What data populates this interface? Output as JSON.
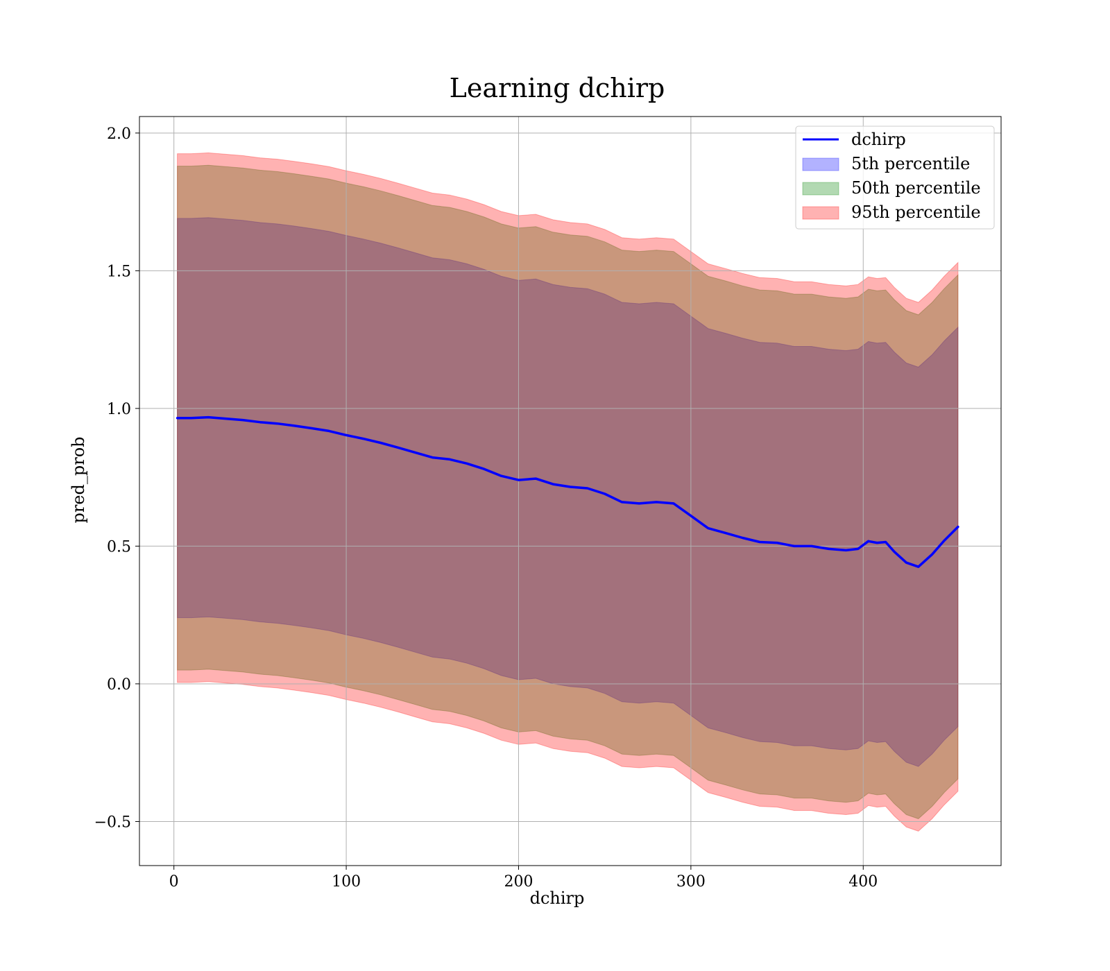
{
  "chart_data": {
    "type": "area",
    "title": "Learning dchirp",
    "xlabel": "dchirp",
    "ylabel": "pred_prob",
    "xlim": [
      -20,
      480
    ],
    "ylim": [
      -0.66,
      2.06
    ],
    "xticks": [
      0,
      100,
      200,
      300,
      400
    ],
    "yticks": [
      -0.5,
      0.0,
      0.5,
      1.0,
      1.5,
      2.0
    ],
    "xtick_labels": [
      "0",
      "100",
      "200",
      "300",
      "400"
    ],
    "ytick_labels": [
      "−0.5",
      "0.0",
      "0.5",
      "1.0",
      "1.5",
      "2.0"
    ],
    "grid": true,
    "legend_position": "top-right",
    "x": [
      2,
      10,
      20,
      30,
      40,
      50,
      60,
      70,
      80,
      90,
      100,
      110,
      120,
      130,
      140,
      150,
      160,
      170,
      180,
      190,
      200,
      210,
      220,
      230,
      240,
      250,
      260,
      270,
      280,
      290,
      300,
      310,
      320,
      330,
      340,
      350,
      360,
      370,
      380,
      390,
      397,
      403,
      408,
      413,
      418,
      425,
      432,
      440,
      447,
      455
    ],
    "series": [
      {
        "name": "dchirp",
        "kind": "line",
        "color": "#0000ff",
        "values": [
          0.965,
          0.965,
          0.968,
          0.963,
          0.958,
          0.95,
          0.945,
          0.937,
          0.928,
          0.918,
          0.903,
          0.89,
          0.875,
          0.858,
          0.84,
          0.822,
          0.815,
          0.8,
          0.78,
          0.755,
          0.74,
          0.745,
          0.725,
          0.715,
          0.71,
          0.69,
          0.66,
          0.655,
          0.66,
          0.655,
          0.61,
          0.565,
          0.548,
          0.53,
          0.515,
          0.512,
          0.5,
          0.5,
          0.49,
          0.485,
          0.49,
          0.518,
          0.512,
          0.515,
          0.48,
          0.44,
          0.425,
          0.47,
          0.52,
          0.57
        ]
      },
      {
        "name": "5th percentile",
        "kind": "band",
        "color": "#0000ff",
        "opacity": 0.3,
        "upper": [
          1.69,
          1.69,
          1.693,
          1.688,
          1.683,
          1.675,
          1.67,
          1.662,
          1.653,
          1.643,
          1.628,
          1.615,
          1.6,
          1.583,
          1.565,
          1.547,
          1.54,
          1.525,
          1.505,
          1.48,
          1.465,
          1.47,
          1.45,
          1.44,
          1.435,
          1.415,
          1.385,
          1.38,
          1.385,
          1.38,
          1.335,
          1.29,
          1.273,
          1.255,
          1.24,
          1.237,
          1.225,
          1.225,
          1.215,
          1.21,
          1.215,
          1.243,
          1.237,
          1.24,
          1.205,
          1.165,
          1.15,
          1.195,
          1.245,
          1.295
        ],
        "lower": [
          0.24,
          0.24,
          0.243,
          0.238,
          0.233,
          0.225,
          0.22,
          0.212,
          0.203,
          0.193,
          0.178,
          0.165,
          0.15,
          0.133,
          0.115,
          0.097,
          0.09,
          0.075,
          0.055,
          0.03,
          0.015,
          0.02,
          0.0,
          -0.01,
          -0.015,
          -0.035,
          -0.065,
          -0.07,
          -0.065,
          -0.07,
          -0.115,
          -0.16,
          -0.177,
          -0.195,
          -0.21,
          -0.213,
          -0.225,
          -0.225,
          -0.235,
          -0.24,
          -0.235,
          -0.207,
          -0.213,
          -0.21,
          -0.245,
          -0.285,
          -0.3,
          -0.255,
          -0.205,
          -0.155
        ]
      },
      {
        "name": "50th percentile",
        "kind": "band",
        "color": "#008000",
        "opacity": 0.3,
        "upper": [
          1.88,
          1.88,
          1.883,
          1.878,
          1.873,
          1.865,
          1.86,
          1.852,
          1.843,
          1.833,
          1.818,
          1.805,
          1.79,
          1.773,
          1.755,
          1.737,
          1.73,
          1.715,
          1.695,
          1.67,
          1.655,
          1.66,
          1.64,
          1.63,
          1.625,
          1.605,
          1.575,
          1.57,
          1.575,
          1.57,
          1.525,
          1.48,
          1.463,
          1.445,
          1.43,
          1.427,
          1.415,
          1.415,
          1.405,
          1.4,
          1.405,
          1.433,
          1.427,
          1.43,
          1.395,
          1.355,
          1.34,
          1.385,
          1.435,
          1.485
        ],
        "lower": [
          0.05,
          0.05,
          0.053,
          0.048,
          0.043,
          0.035,
          0.03,
          0.022,
          0.013,
          0.003,
          -0.012,
          -0.025,
          -0.04,
          -0.057,
          -0.075,
          -0.093,
          -0.1,
          -0.115,
          -0.135,
          -0.16,
          -0.175,
          -0.17,
          -0.19,
          -0.2,
          -0.205,
          -0.225,
          -0.255,
          -0.26,
          -0.255,
          -0.26,
          -0.305,
          -0.35,
          -0.367,
          -0.385,
          -0.4,
          -0.403,
          -0.415,
          -0.415,
          -0.425,
          -0.43,
          -0.425,
          -0.397,
          -0.403,
          -0.4,
          -0.435,
          -0.475,
          -0.49,
          -0.445,
          -0.395,
          -0.345
        ]
      },
      {
        "name": "95th percentile",
        "kind": "band",
        "color": "#ff0000",
        "opacity": 0.3,
        "upper": [
          1.925,
          1.925,
          1.928,
          1.923,
          1.918,
          1.91,
          1.905,
          1.897,
          1.888,
          1.878,
          1.863,
          1.85,
          1.835,
          1.818,
          1.8,
          1.782,
          1.775,
          1.76,
          1.74,
          1.715,
          1.7,
          1.705,
          1.685,
          1.675,
          1.67,
          1.65,
          1.62,
          1.615,
          1.62,
          1.615,
          1.57,
          1.525,
          1.508,
          1.49,
          1.475,
          1.472,
          1.46,
          1.46,
          1.45,
          1.445,
          1.45,
          1.478,
          1.472,
          1.475,
          1.44,
          1.4,
          1.385,
          1.43,
          1.48,
          1.53
        ],
        "lower": [
          0.005,
          0.005,
          0.008,
          0.003,
          -0.002,
          -0.01,
          -0.015,
          -0.023,
          -0.032,
          -0.042,
          -0.057,
          -0.07,
          -0.085,
          -0.102,
          -0.12,
          -0.138,
          -0.145,
          -0.16,
          -0.18,
          -0.205,
          -0.22,
          -0.215,
          -0.235,
          -0.245,
          -0.25,
          -0.27,
          -0.3,
          -0.305,
          -0.3,
          -0.305,
          -0.35,
          -0.395,
          -0.412,
          -0.43,
          -0.445,
          -0.448,
          -0.46,
          -0.46,
          -0.47,
          -0.475,
          -0.47,
          -0.442,
          -0.448,
          -0.445,
          -0.48,
          -0.52,
          -0.535,
          -0.49,
          -0.44,
          -0.39
        ]
      }
    ]
  }
}
